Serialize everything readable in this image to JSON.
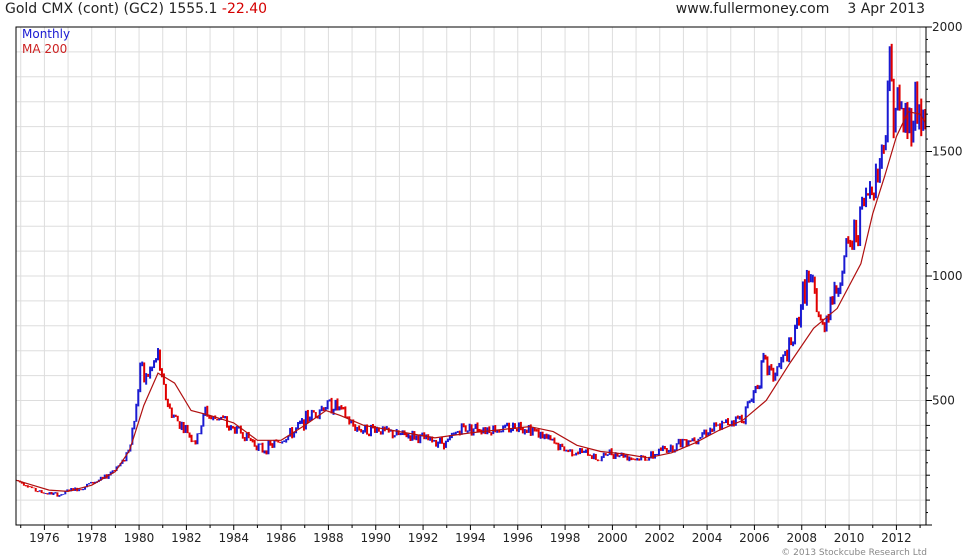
{
  "header": {
    "title": "Gold CMX (cont) (GC2) 1555.1",
    "change": "-22.40",
    "site": "www.fullermoney.com",
    "date": "3 Apr 2013"
  },
  "legend": {
    "series1": "Monthly",
    "series2": "MA 200"
  },
  "copyright": "© 2013 Stockcube Research Ltd",
  "colors": {
    "up": "#1a1ad2",
    "down": "#e00000",
    "ma": "#b01010",
    "grid": "#dddddd",
    "axis": "#000000"
  },
  "chart_data": {
    "type": "line",
    "title": "Gold CMX (cont) (GC2) 1555.1 -22.40",
    "xlabel": "",
    "ylabel": "",
    "xlim": [
      1974.8,
      2013.25
    ],
    "ylim": [
      0,
      2000
    ],
    "y_ticks": [
      500,
      1000,
      1500,
      2000
    ],
    "x_ticks": [
      "1976",
      "1978",
      "1980",
      "1982",
      "1984",
      "1986",
      "1988",
      "1990",
      "1992",
      "1994",
      "1996",
      "1998",
      "2000",
      "2002",
      "2004",
      "2006",
      "2008",
      "2010",
      "2012"
    ],
    "grid": true,
    "legend_position": "top-left",
    "series": [
      {
        "name": "Monthly",
        "x": [
          1974.8,
          1975.2,
          1975.6,
          1976.0,
          1976.4,
          1976.7,
          1977.0,
          1977.5,
          1978.0,
          1978.5,
          1979.0,
          1979.3,
          1979.6,
          1979.9,
          1980.05,
          1980.2,
          1980.5,
          1980.8,
          1981.0,
          1981.3,
          1981.6,
          1982.0,
          1982.4,
          1982.5,
          1982.8,
          1983.1,
          1983.4,
          1983.8,
          1984.2,
          1984.6,
          1985.0,
          1985.2,
          1985.6,
          1986.0,
          1986.5,
          1987.0,
          1987.5,
          1987.9,
          1988.3,
          1988.7,
          1989.0,
          1989.5,
          1990.0,
          1990.5,
          1991.0,
          1991.5,
          1992.0,
          1992.5,
          1993.0,
          1993.3,
          1993.6,
          1994.0,
          1994.5,
          1995.0,
          1995.5,
          1996.0,
          1996.5,
          1997.0,
          1997.5,
          1998.0,
          1998.5,
          1999.0,
          1999.5,
          1999.75,
          2000.0,
          2000.5,
          2001.0,
          2001.3,
          2001.7,
          2002.0,
          2002.5,
          2003.0,
          2003.5,
          2004.0,
          2004.5,
          2005.0,
          2005.5,
          2006.0,
          2006.4,
          2006.8,
          2007.2,
          2007.6,
          2008.0,
          2008.2,
          2008.5,
          2008.85,
          2009.2,
          2009.5,
          2009.9,
          2010.2,
          2010.5,
          2010.9,
          2011.2,
          2011.5,
          2011.67,
          2011.9,
          2012.2,
          2012.5,
          2012.8,
          2013.0,
          2013.25
        ],
        "y": [
          180,
          165,
          140,
          128,
          125,
          118,
          140,
          145,
          170,
          185,
          230,
          250,
          320,
          480,
          650,
          580,
          620,
          680,
          560,
          460,
          420,
          380,
          330,
          360,
          460,
          420,
          440,
          390,
          380,
          350,
          320,
          300,
          320,
          340,
          370,
          420,
          460,
          480,
          480,
          440,
          400,
          380,
          390,
          370,
          360,
          360,
          345,
          340,
          330,
          360,
          390,
          390,
          390,
          385,
          385,
          400,
          390,
          360,
          330,
          300,
          295,
          285,
          260,
          290,
          290,
          280,
          265,
          270,
          275,
          300,
          310,
          340,
          350,
          380,
          390,
          420,
          430,
          540,
          650,
          600,
          660,
          720,
          900,
          990,
          930,
          780,
          900,
          950,
          1100,
          1150,
          1250,
          1360,
          1420,
          1550,
          1850,
          1700,
          1650,
          1600,
          1700,
          1660,
          1580
        ]
      },
      {
        "name": "MA 200",
        "x": [
          1974.8,
          1975.5,
          1976.2,
          1977.0,
          1978.0,
          1979.0,
          1979.6,
          1980.2,
          1980.8,
          1981.5,
          1982.2,
          1983.0,
          1984.0,
          1985.0,
          1986.0,
          1987.0,
          1987.9,
          1988.5,
          1989.5,
          1991.0,
          1992.5,
          1994.0,
          1995.5,
          1996.5,
          1997.5,
          1998.5,
          1999.5,
          2000.5,
          2001.5,
          2002.5,
          2003.5,
          2004.5,
          2005.5,
          2006.5,
          2007.5,
          2008.5,
          2009.5,
          2010.5,
          2011.0,
          2011.5,
          2012.0,
          2012.5,
          2013.0,
          2013.25
        ],
        "y": [
          180,
          160,
          140,
          135,
          160,
          215,
          300,
          480,
          610,
          570,
          460,
          440,
          410,
          340,
          340,
          400,
          460,
          440,
          400,
          375,
          350,
          370,
          385,
          395,
          375,
          320,
          295,
          285,
          270,
          290,
          330,
          380,
          420,
          500,
          650,
          790,
          870,
          1050,
          1250,
          1400,
          1560,
          1660,
          1650,
          1610
        ]
      }
    ]
  }
}
